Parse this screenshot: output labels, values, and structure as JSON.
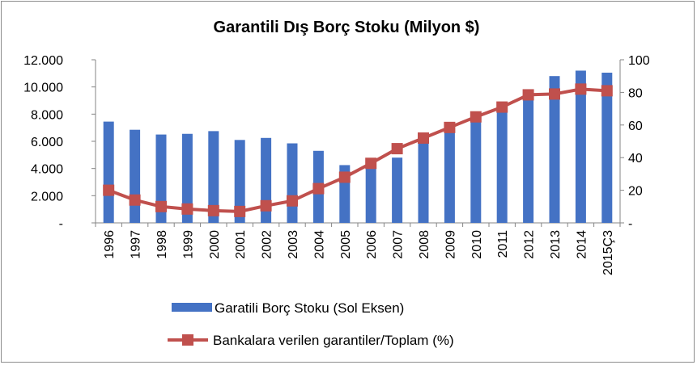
{
  "chart_data": {
    "type": "bar",
    "title": "Garantili Dış Borç Stoku (Milyon $)",
    "categories": [
      "1996",
      "1997",
      "1998",
      "1999",
      "2000",
      "2001",
      "2002",
      "2003",
      "2004",
      "2005",
      "2006",
      "2007",
      "2008",
      "2009",
      "2010",
      "2011",
      "2012",
      "2013",
      "2014",
      "2015Ç3"
    ],
    "series": [
      {
        "name": "Garatili Borç Stoku (Sol Eksen)",
        "type": "bar",
        "axis": "left",
        "color": "#4472c4",
        "values": [
          7450,
          6850,
          6500,
          6550,
          6750,
          6100,
          6250,
          5850,
          5300,
          4250,
          4400,
          4800,
          6000,
          6750,
          7700,
          8300,
          9500,
          10800,
          11200,
          11050
        ]
      },
      {
        "name": "Bankalara verilen garantiler/Toplam (%)",
        "type": "line",
        "axis": "right",
        "color": "#c0504d",
        "values": [
          20,
          14,
          10,
          8.5,
          7.5,
          7,
          10.5,
          13.5,
          21,
          28,
          36.5,
          45.5,
          52,
          58.5,
          65,
          71,
          78.5,
          79,
          82,
          81
        ]
      }
    ],
    "left_axis": {
      "ticks": [
        "-",
        "2.000",
        "4.000",
        "6.000",
        "8.000",
        "10.000",
        "12.000"
      ],
      "ylim": [
        0,
        12000
      ]
    },
    "right_axis": {
      "ticks": [
        "-",
        "20",
        "40",
        "60",
        "80",
        "100"
      ],
      "ylim": [
        0,
        100
      ]
    },
    "legend_position": "bottom",
    "grid": false
  }
}
